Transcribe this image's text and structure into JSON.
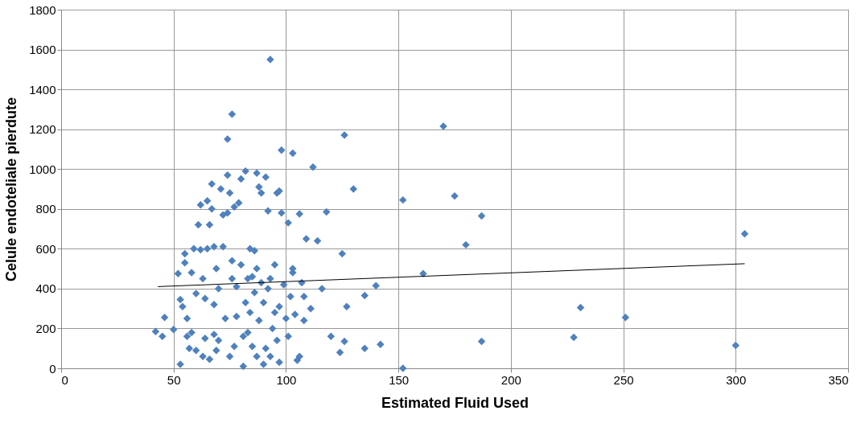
{
  "chart_data": {
    "type": "scatter",
    "xlabel": "Estimated Fluid Used",
    "ylabel": "Celule endoteliale pierdute",
    "xlim": [
      0,
      350
    ],
    "xticks": [
      0,
      50,
      100,
      150,
      200,
      250,
      300,
      350
    ],
    "ylim": [
      0,
      1800
    ],
    "yticks": [
      0,
      200,
      400,
      600,
      800,
      1000,
      1200,
      1400,
      1600,
      1800
    ],
    "grid": true,
    "series": [
      {
        "color": "#4f81bd",
        "marker": "diamond",
        "x": [
          93,
          76,
          74,
          126,
          170,
          98,
          103,
          112,
          130,
          152,
          175,
          187,
          180,
          161,
          125,
          118,
          106,
          109,
          140,
          135,
          127,
          116,
          120,
          126,
          124,
          135,
          142,
          152,
          187,
          228,
          231,
          251,
          300,
          304,
          42,
          45,
          46,
          50,
          52,
          53,
          53,
          54,
          55,
          55,
          56,
          56,
          57,
          58,
          58,
          59,
          60,
          60,
          61,
          62,
          62,
          63,
          63,
          64,
          64,
          65,
          65,
          66,
          66,
          67,
          67,
          68,
          68,
          68,
          69,
          69,
          70,
          70,
          71,
          72,
          72,
          73,
          74,
          74,
          75,
          75,
          76,
          76,
          77,
          77,
          78,
          78,
          79,
          80,
          80,
          81,
          81,
          82,
          82,
          83,
          83,
          84,
          84,
          85,
          85,
          86,
          86,
          87,
          87,
          87,
          88,
          88,
          89,
          89,
          90,
          90,
          91,
          91,
          92,
          92,
          93,
          93,
          94,
          95,
          95,
          96,
          96,
          97,
          97,
          97,
          98,
          99,
          100,
          101,
          101,
          102,
          103,
          103,
          104,
          105,
          106,
          107,
          108,
          108,
          111,
          114
        ],
        "values": [
          1550,
          1275,
          1150,
          1170,
          1215,
          1095,
          1080,
          1010,
          900,
          845,
          865,
          765,
          620,
          475,
          575,
          785,
          775,
          650,
          415,
          365,
          310,
          400,
          160,
          135,
          80,
          100,
          120,
          0,
          135,
          155,
          305,
          255,
          115,
          675,
          185,
          160,
          255,
          195,
          475,
          20,
          345,
          310,
          530,
          575,
          250,
          160,
          100,
          180,
          480,
          600,
          90,
          375,
          720,
          595,
          820,
          450,
          60,
          150,
          350,
          600,
          840,
          720,
          45,
          925,
          800,
          610,
          170,
          320,
          500,
          90,
          140,
          400,
          900,
          610,
          770,
          250,
          780,
          970,
          880,
          60,
          450,
          540,
          110,
          810,
          260,
          410,
          830,
          520,
          950,
          10,
          160,
          990,
          330,
          450,
          180,
          600,
          280,
          110,
          460,
          590,
          380,
          980,
          500,
          60,
          910,
          240,
          430,
          880,
          20,
          330,
          960,
          100,
          790,
          400,
          450,
          60,
          200,
          280,
          520,
          140,
          880,
          890,
          310,
          30,
          780,
          420,
          250,
          160,
          730,
          360,
          480,
          500,
          270,
          40,
          60,
          430,
          360,
          240,
          300,
          640
        ]
      },
      {
        "color": "#000000",
        "type": "line",
        "marker": "none",
        "x": [
          43,
          304
        ],
        "values": [
          410,
          525
        ]
      }
    ]
  }
}
